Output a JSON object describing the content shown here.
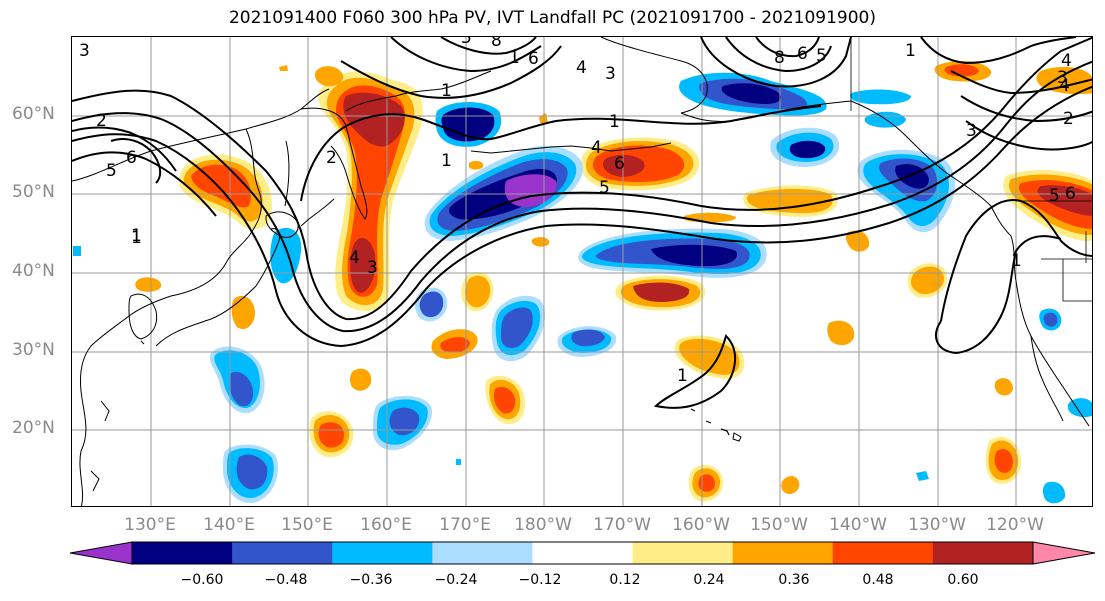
{
  "title": "2021091400 F060 300 hPa PV, IVT Landfall PC (2021091700 - 2021091900)",
  "axes": {
    "lat_labels": [
      "60°N",
      "50°N",
      "40°N",
      "30°N",
      "20°N"
    ],
    "lon_labels": [
      "130°E",
      "140°E",
      "150°E",
      "160°E",
      "170°E",
      "180°W",
      "170°W",
      "160°W",
      "150°W",
      "140°W",
      "130°W",
      "120°W"
    ]
  },
  "colorbar": {
    "colors": [
      "#9933cc",
      "#000080",
      "#3355cc",
      "#00bbff",
      "#aaddff",
      "#ffffff",
      "#ffee88",
      "#ffa500",
      "#ff4500",
      "#b22222",
      "#ff88aa"
    ],
    "tick_labels": [
      "−0.60",
      "−0.48",
      "−0.36",
      "−0.24",
      "−0.12",
      "0.12",
      "0.24",
      "0.36",
      "0.48",
      "0.60"
    ]
  },
  "contour_labels": [
    "3",
    "2",
    "1",
    "6",
    "5",
    "1",
    "2",
    "1",
    "3",
    "4",
    "6",
    "8",
    "5",
    "1",
    "1",
    "4",
    "5",
    "6",
    "1",
    "3",
    "8",
    "6",
    "5",
    "4",
    "1",
    "3",
    "4",
    "2",
    "5",
    "6",
    "1",
    "1",
    "4",
    "3",
    "1"
  ]
}
